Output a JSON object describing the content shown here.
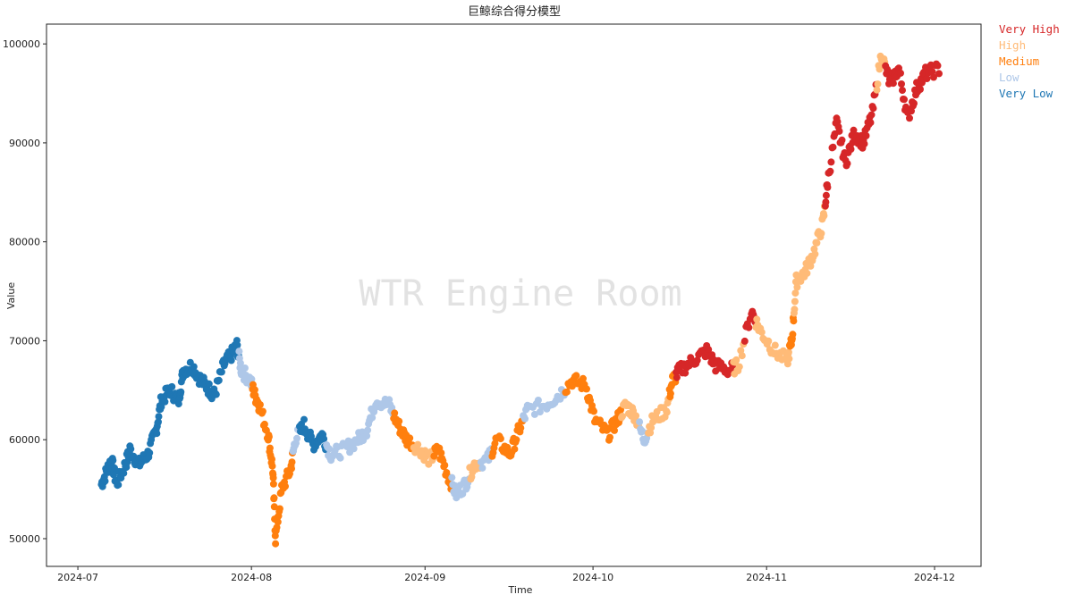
{
  "chart_data": {
    "type": "scatter",
    "title": "巨鲸综合得分模型",
    "xlabel": "Time",
    "ylabel": "Value",
    "watermark": "WTR Engine Room",
    "x_unit": "days since 2024-07-01",
    "xlim": [
      -5.6,
      161.3
    ],
    "ylim": [
      47200,
      102000
    ],
    "x_ticks": [
      {
        "day": 0,
        "label": "2024-07"
      },
      {
        "day": 31,
        "label": "2024-08"
      },
      {
        "day": 62,
        "label": "2024-09"
      },
      {
        "day": 92,
        "label": "2024-10"
      },
      {
        "day": 123,
        "label": "2024-11"
      },
      {
        "day": 153,
        "label": "2024-12"
      }
    ],
    "y_ticks": [
      50000,
      60000,
      70000,
      80000,
      90000,
      100000
    ],
    "grid": false,
    "legend_placement": "outside-top-right",
    "legend": [
      {
        "key": "VH",
        "label": "Very High",
        "color": "#d62728"
      },
      {
        "key": "H",
        "label": "High",
        "color": "#ffbb78"
      },
      {
        "key": "M",
        "label": "Medium",
        "color": "#ff7f0e"
      },
      {
        "key": "L",
        "label": "Low",
        "color": "#aec7e8"
      },
      {
        "key": "VL",
        "label": "Very Low",
        "color": "#1f77b4"
      }
    ],
    "points": [
      [
        4.2,
        55500,
        "VL"
      ],
      [
        5.3,
        57000,
        "VL"
      ],
      [
        6,
        58000,
        "VL"
      ],
      [
        6.9,
        55500,
        "VL"
      ],
      [
        8.5,
        57500,
        "VL"
      ],
      [
        9.3,
        59000,
        "VL"
      ],
      [
        10.9,
        57500,
        "VL"
      ],
      [
        12.5,
        58500,
        "VL"
      ],
      [
        14,
        61000,
        "VL"
      ],
      [
        14.9,
        64000,
        "VL"
      ],
      [
        16.5,
        65000,
        "VL"
      ],
      [
        18,
        64000,
        "VL"
      ],
      [
        18.8,
        67000,
        "VL"
      ],
      [
        20.4,
        67500,
        "VL"
      ],
      [
        22,
        66000,
        "VL"
      ],
      [
        23.6,
        65000,
        "VL"
      ],
      [
        24.4,
        64500,
        "VL"
      ],
      [
        26,
        67500,
        "VL"
      ],
      [
        27.3,
        68500,
        "VL"
      ],
      [
        28.4,
        69500,
        "VL"
      ],
      [
        29.2,
        67000,
        "L"
      ],
      [
        30.8,
        66000,
        "L"
      ],
      [
        31.6,
        64500,
        "M"
      ],
      [
        32.4,
        63500,
        "M"
      ],
      [
        34,
        60500,
        "M"
      ],
      [
        34.8,
        57000,
        "M"
      ],
      [
        35.3,
        50000,
        "M"
      ],
      [
        36.4,
        55000,
        "M"
      ],
      [
        38,
        57000,
        "M"
      ],
      [
        38.8,
        60000,
        "L"
      ],
      [
        40.4,
        61500,
        "VL"
      ],
      [
        42,
        59500,
        "VL"
      ],
      [
        43.6,
        60500,
        "VL"
      ],
      [
        45.2,
        58500,
        "L"
      ],
      [
        47.6,
        59000,
        "L"
      ],
      [
        50,
        60000,
        "L"
      ],
      [
        51.6,
        61000,
        "L"
      ],
      [
        53.2,
        64000,
        "L"
      ],
      [
        55.6,
        63500,
        "L"
      ],
      [
        57.2,
        61500,
        "M"
      ],
      [
        58.8,
        60000,
        "M"
      ],
      [
        61.2,
        59000,
        "H"
      ],
      [
        62.8,
        58000,
        "H"
      ],
      [
        64.4,
        59000,
        "M"
      ],
      [
        66,
        56500,
        "M"
      ],
      [
        67.6,
        54500,
        "L"
      ],
      [
        69.2,
        55500,
        "L"
      ],
      [
        70.8,
        57500,
        "H"
      ],
      [
        73.2,
        58000,
        "L"
      ],
      [
        74.8,
        60000,
        "M"
      ],
      [
        77.2,
        58500,
        "M"
      ],
      [
        78.8,
        61000,
        "M"
      ],
      [
        80.3,
        63000,
        "L"
      ],
      [
        83.5,
        63500,
        "L"
      ],
      [
        85.9,
        64500,
        "L"
      ],
      [
        88.3,
        66000,
        "M"
      ],
      [
        90.7,
        65500,
        "M"
      ],
      [
        92.3,
        62000,
        "M"
      ],
      [
        94.7,
        60500,
        "M"
      ],
      [
        96.3,
        62000,
        "M"
      ],
      [
        97.9,
        63500,
        "H"
      ],
      [
        99.5,
        62500,
        "H"
      ],
      [
        101.1,
        60000,
        "L"
      ],
      [
        102.7,
        62000,
        "H"
      ],
      [
        105.1,
        63000,
        "H"
      ],
      [
        106.2,
        66000,
        "M"
      ],
      [
        107.5,
        67000,
        "VH"
      ],
      [
        109.9,
        68000,
        "VH"
      ],
      [
        112.3,
        69000,
        "VH"
      ],
      [
        113.9,
        67500,
        "VH"
      ],
      [
        116.3,
        67000,
        "VH"
      ],
      [
        117.9,
        67500,
        "H"
      ],
      [
        120.3,
        73000,
        "VH"
      ],
      [
        121.9,
        71000,
        "H"
      ],
      [
        124.3,
        69000,
        "H"
      ],
      [
        126.7,
        68000,
        "H"
      ],
      [
        127.5,
        70000,
        "M"
      ],
      [
        128.3,
        76000,
        "H"
      ],
      [
        129.9,
        77000,
        "H"
      ],
      [
        131.5,
        79000,
        "H"
      ],
      [
        133.1,
        82000,
        "H"
      ],
      [
        133.9,
        86000,
        "VH"
      ],
      [
        135.5,
        92000,
        "VH"
      ],
      [
        137.1,
        88000,
        "VH"
      ],
      [
        138.7,
        91000,
        "VH"
      ],
      [
        140.3,
        90000,
        "VH"
      ],
      [
        141.9,
        93000,
        "VH"
      ],
      [
        143.5,
        99000,
        "H"
      ],
      [
        145,
        96000,
        "VH"
      ],
      [
        146.6,
        97500,
        "VH"
      ],
      [
        148.2,
        92500,
        "VH"
      ],
      [
        149.8,
        95500,
        "VH"
      ],
      [
        151.4,
        97000,
        "VH"
      ],
      [
        153.8,
        97500,
        "VH"
      ]
    ]
  }
}
